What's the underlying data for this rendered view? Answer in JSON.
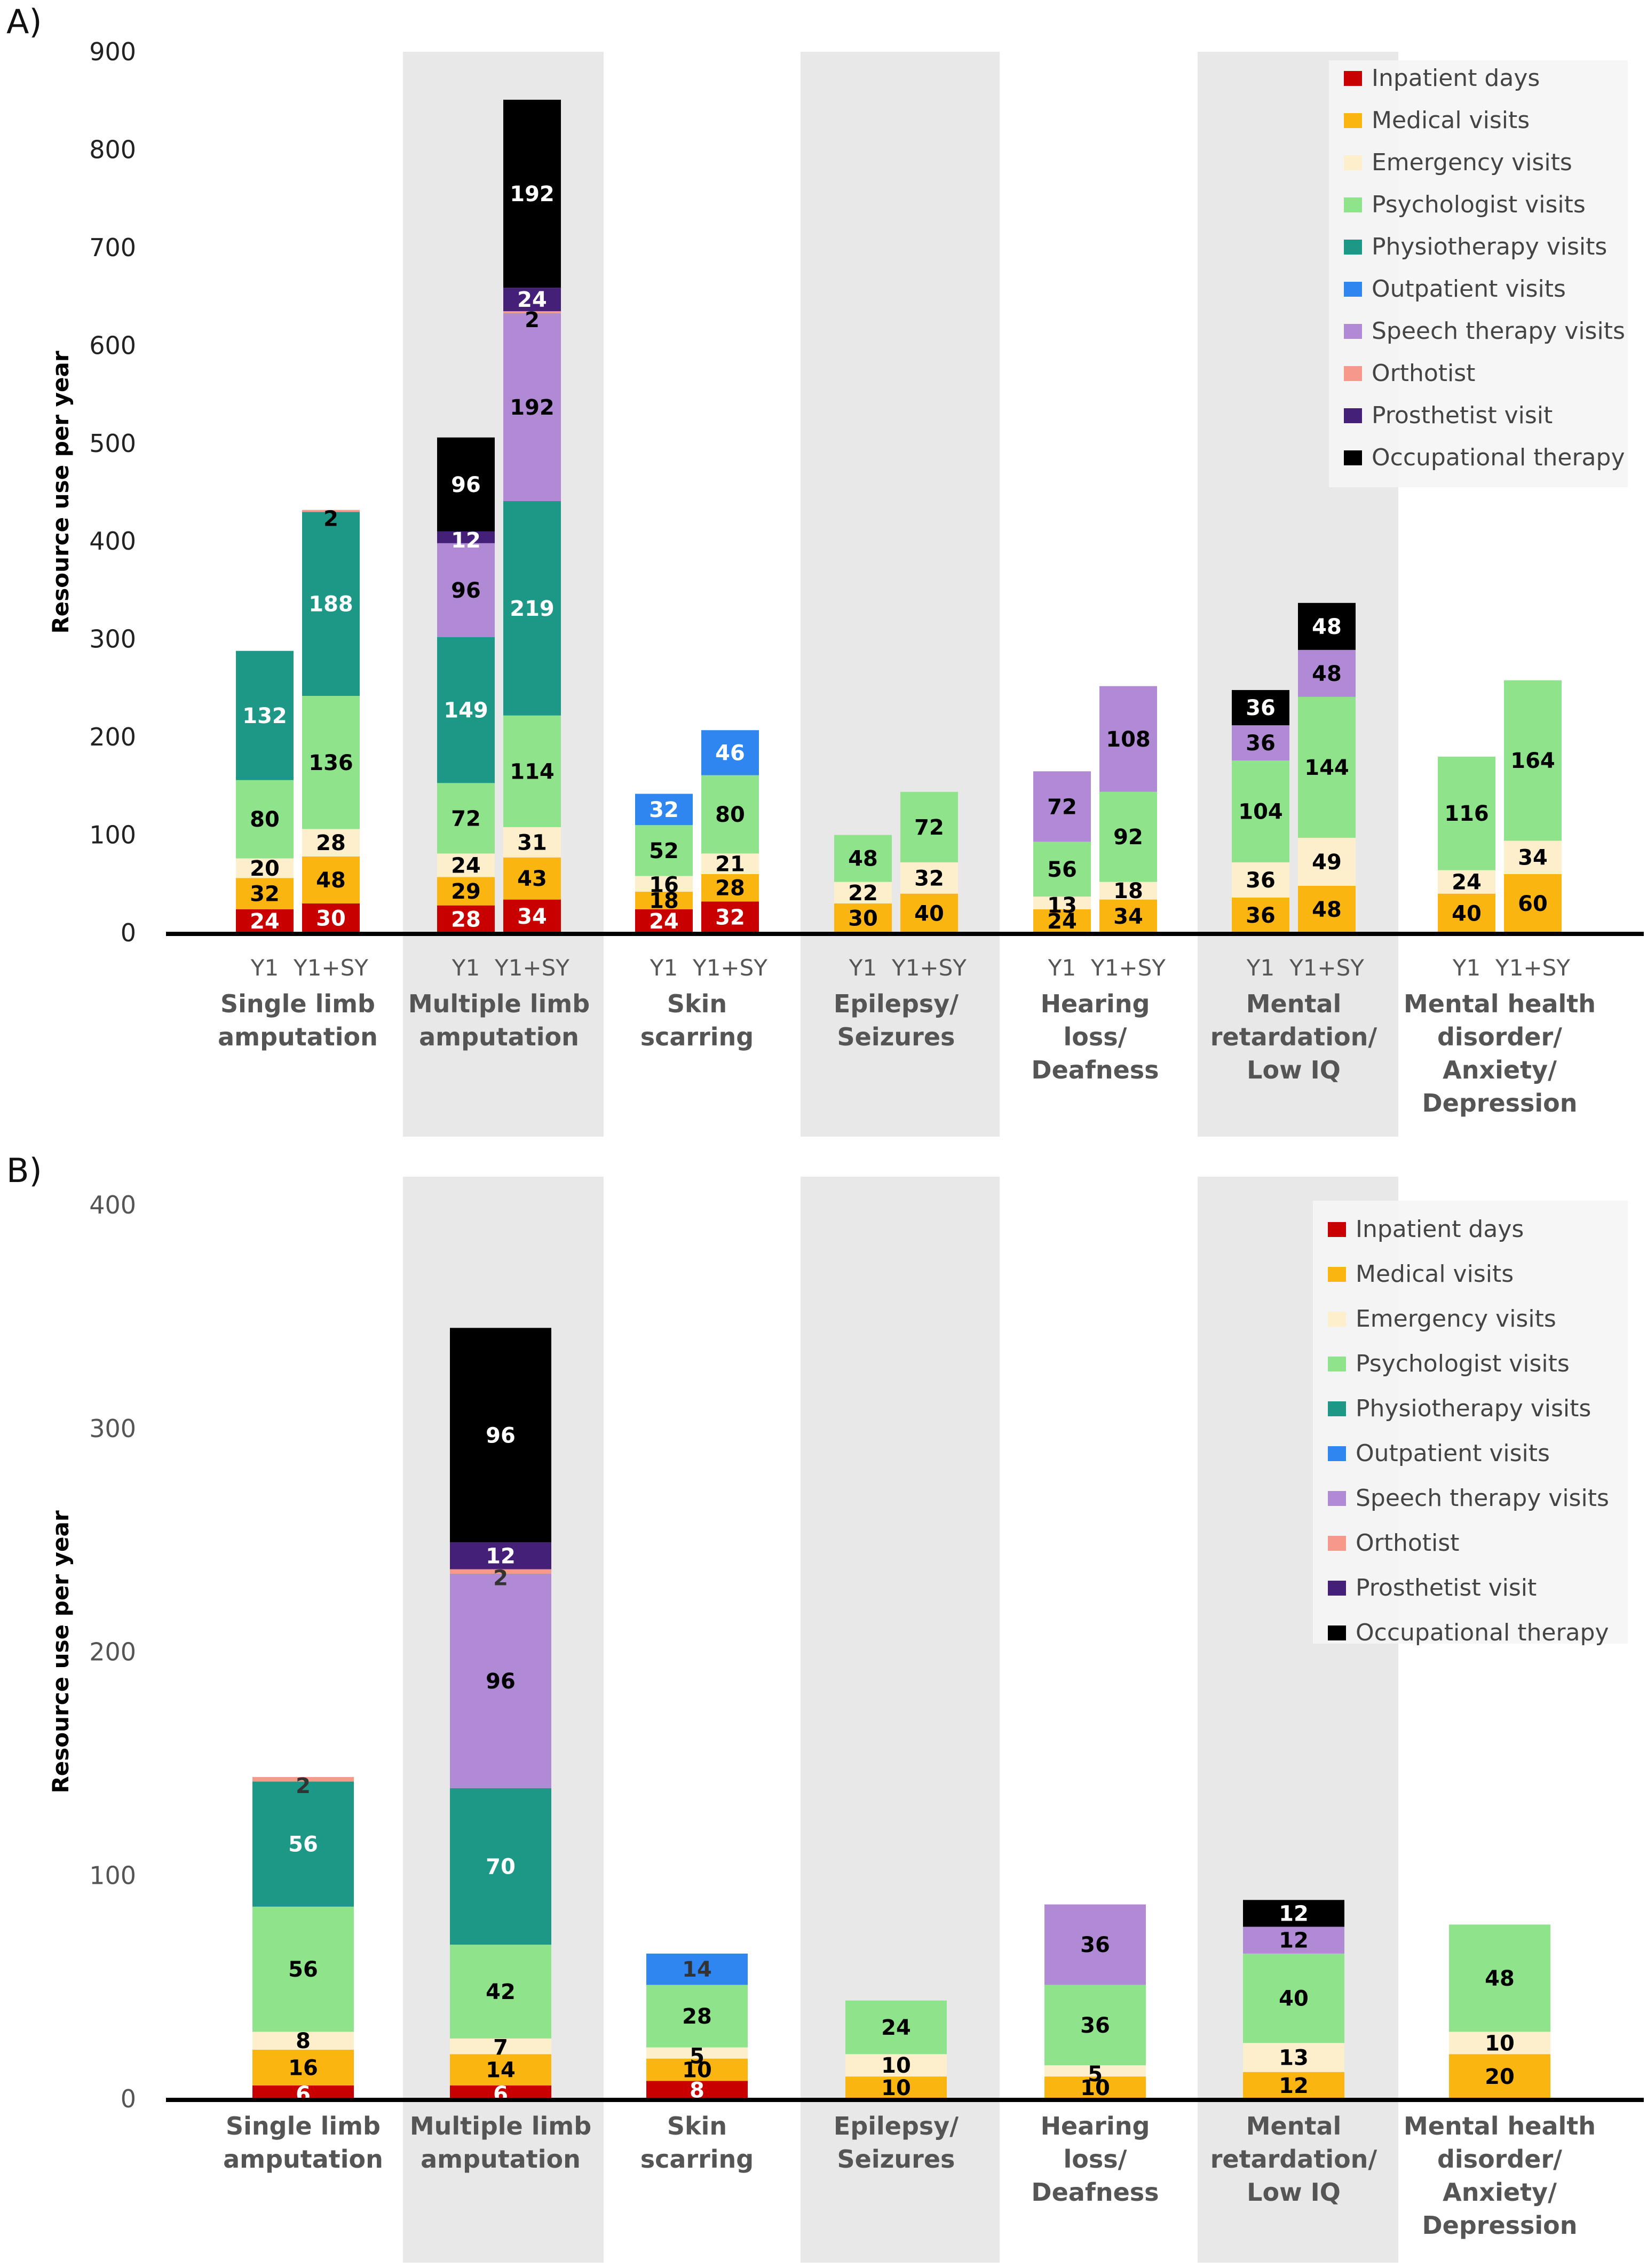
{
  "chart_data": [
    {
      "panel": "A)",
      "type": "bar",
      "stacked": true,
      "ylabel": "Resource use per year",
      "xlabel": "",
      "ylim": [
        0,
        900
      ],
      "yticks": [
        0,
        100,
        200,
        300,
        400,
        500,
        600,
        700,
        800,
        900
      ],
      "legend_position": "top-right",
      "series_names": [
        "Inpatient days",
        "Medical visits",
        "Emergency visits",
        "Psychologist visits",
        "Physiotherapy visits",
        "Outpatient visits",
        "Speech therapy visits",
        "Orthotist",
        "Prosthetist visit",
        "Occupational therapy"
      ],
      "series_colors": [
        "#c80000",
        "#fbb511",
        "#fdefcc",
        "#8fe38a",
        "#1e9886",
        "#2f86f0",
        "#b18ad6",
        "#f7998a",
        "#452079",
        "#000000"
      ],
      "label_colors": [
        "#ffffff",
        "#000000",
        "#000000",
        "#000000",
        "#ffffff",
        "#ffffff",
        "#000000",
        "#000000",
        "#ffffff",
        "#ffffff"
      ],
      "categories": [
        "Single limb amputation",
        "Multiple limb amputation",
        "Skin scarring",
        "Epilepsy/ Seizures",
        "Hearing loss/ Deafness",
        "Mental retardation/ Low IQ",
        "Mental health disorder/ Anxiety/ Depression"
      ],
      "category_lines": [
        [
          "Single limb",
          "amputation"
        ],
        [
          "Multiple limb",
          "amputation"
        ],
        [
          "Skin",
          "scarring"
        ],
        [
          "Epilepsy/",
          "Seizures"
        ],
        [
          "Hearing",
          "loss/",
          "Deafness"
        ],
        [
          "Mental",
          "retardation/",
          "Low IQ"
        ],
        [
          "Mental health",
          "disorder/",
          "Anxiety/",
          "Depression"
        ]
      ],
      "shaded_categories": [
        1,
        3,
        5
      ],
      "subcategories": [
        "Y1",
        "Y1+SY"
      ],
      "bars": [
        [
          [
            24,
            32,
            20,
            80,
            132,
            0,
            0,
            0,
            0,
            0
          ],
          [
            30,
            48,
            28,
            136,
            188,
            0,
            0,
            2,
            0,
            0
          ]
        ],
        [
          [
            28,
            29,
            24,
            72,
            149,
            0,
            96,
            0,
            12,
            96
          ],
          [
            34,
            43,
            31,
            114,
            219,
            0,
            192,
            2,
            24,
            192
          ]
        ],
        [
          [
            24,
            18,
            16,
            52,
            0,
            32,
            0,
            0,
            0,
            0
          ],
          [
            32,
            28,
            21,
            80,
            0,
            46,
            0,
            0,
            0,
            0
          ]
        ],
        [
          [
            0,
            30,
            22,
            48,
            0,
            0,
            0,
            0,
            0,
            0
          ],
          [
            0,
            40,
            32,
            72,
            0,
            0,
            0,
            0,
            0,
            0
          ]
        ],
        [
          [
            0,
            24,
            13,
            56,
            0,
            0,
            72,
            0,
            0,
            0
          ],
          [
            0,
            34,
            18,
            92,
            0,
            0,
            108,
            0,
            0,
            0
          ]
        ],
        [
          [
            0,
            36,
            36,
            104,
            0,
            0,
            36,
            0,
            0,
            36
          ],
          [
            0,
            48,
            49,
            144,
            0,
            0,
            48,
            0,
            0,
            48
          ]
        ],
        [
          [
            0,
            40,
            24,
            116,
            0,
            0,
            0,
            0,
            0,
            0
          ],
          [
            0,
            60,
            34,
            164,
            0,
            0,
            0,
            0,
            0,
            0
          ]
        ]
      ]
    },
    {
      "panel": "B)",
      "type": "bar",
      "stacked": true,
      "ylabel": "Resource use per year",
      "xlabel": "",
      "ylim": [
        0,
        400
      ],
      "yticks": [
        0,
        100,
        200,
        300,
        400
      ],
      "legend_position": "top-right",
      "series_names": [
        "Inpatient days",
        "Medical visits",
        "Emergency visits",
        "Psychologist visits",
        "Physiotherapy visits",
        "Outpatient visits",
        "Speech therapy visits",
        "Orthotist",
        "Prosthetist visit",
        "Occupational therapy"
      ],
      "series_colors": [
        "#c80000",
        "#fbb511",
        "#fdefcc",
        "#8fe38a",
        "#1e9886",
        "#2f86f0",
        "#b18ad6",
        "#f7998a",
        "#452079",
        "#000000"
      ],
      "label_colors": [
        "#ffffff",
        "#000000",
        "#000000",
        "#000000",
        "#ffffff",
        "#333333",
        "#000000",
        "#333333",
        "#ffffff",
        "#ffffff"
      ],
      "categories": [
        "Single limb amputation",
        "Multiple limb amputation",
        "Skin scarring",
        "Epilepsy/ Seizures",
        "Hearing loss/ Deafness",
        "Mental retardation/ Low IQ",
        "Mental health disorder/ Anxiety/ Depression"
      ],
      "category_lines": [
        [
          "Single limb",
          "amputation"
        ],
        [
          "Multiple limb",
          "amputation"
        ],
        [
          "Skin",
          "scarring"
        ],
        [
          "Epilepsy/",
          "Seizures"
        ],
        [
          "Hearing",
          "loss/",
          "Deafness"
        ],
        [
          "Mental",
          "retardation/",
          "Low IQ"
        ],
        [
          "Mental health",
          "disorder/",
          "Anxiety/",
          "Depression"
        ]
      ],
      "shaded_categories": [
        1,
        3,
        5
      ],
      "bars": [
        [
          6,
          16,
          8,
          56,
          56,
          0,
          0,
          2,
          0,
          0
        ],
        [
          6,
          14,
          7,
          42,
          70,
          0,
          96,
          2,
          12,
          96
        ],
        [
          8,
          10,
          5,
          28,
          0,
          14,
          0,
          0,
          0,
          0
        ],
        [
          0,
          10,
          10,
          24,
          0,
          0,
          0,
          0,
          0,
          0
        ],
        [
          0,
          10,
          5,
          36,
          0,
          0,
          36,
          0,
          0,
          0
        ],
        [
          0,
          12,
          13,
          40,
          0,
          0,
          12,
          0,
          0,
          12
        ],
        [
          0,
          20,
          10,
          48,
          0,
          0,
          0,
          0,
          0,
          0
        ]
      ]
    }
  ]
}
